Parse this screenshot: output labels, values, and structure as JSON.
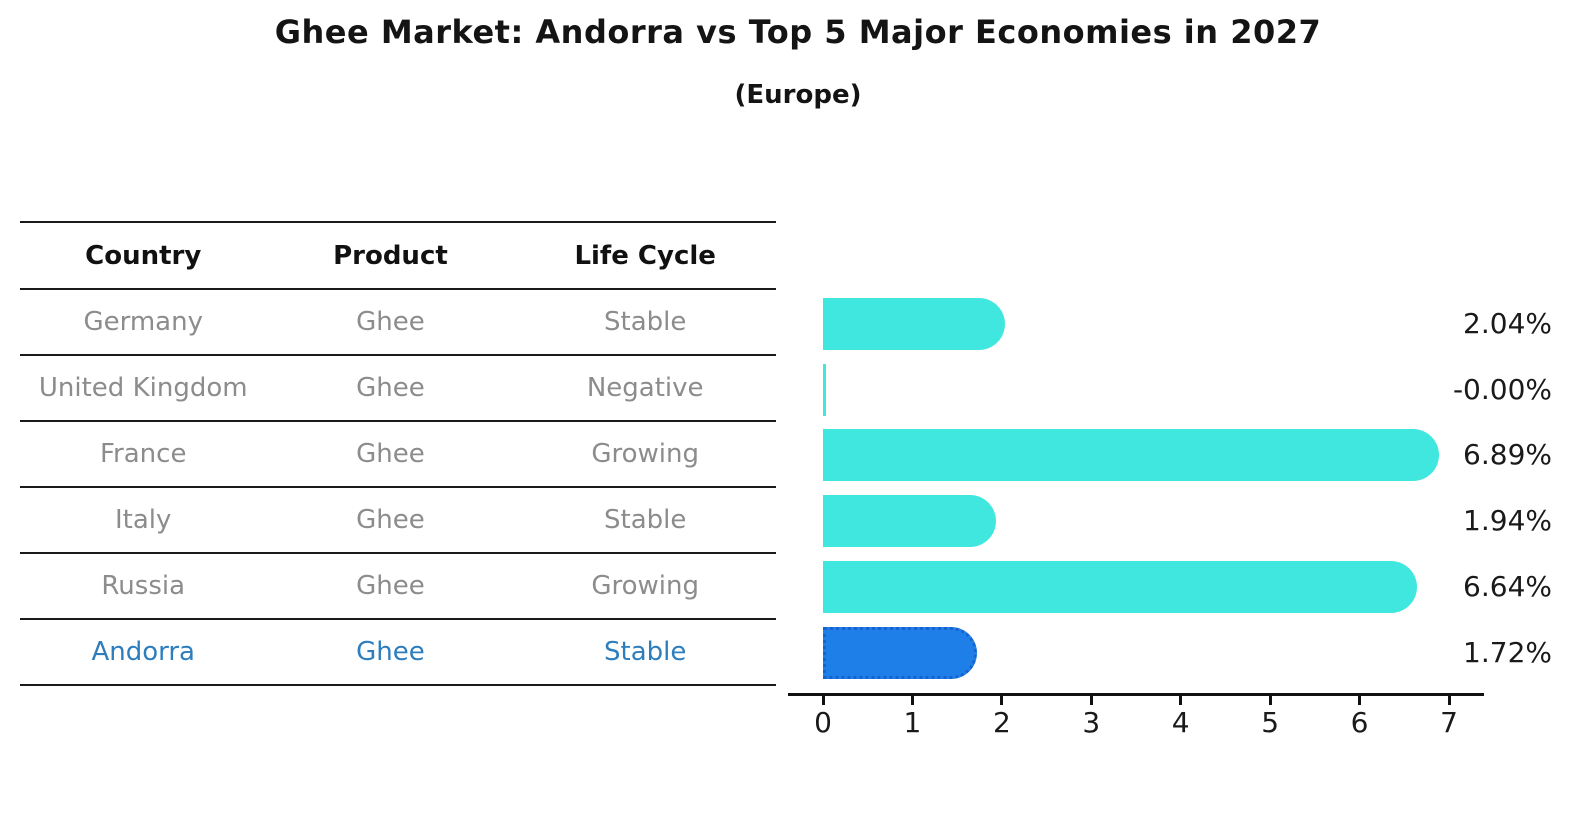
{
  "header": {
    "title": "Ghee Market: Andorra vs Top 5 Major Economies in 2027",
    "subtitle": "(Europe)"
  },
  "table": {
    "columns": [
      "Country",
      "Product",
      "Life Cycle"
    ],
    "rows": [
      {
        "country": "Germany",
        "product": "Ghee",
        "life_cycle": "Stable",
        "highlight": false
      },
      {
        "country": "United Kingdom",
        "product": "Ghee",
        "life_cycle": "Negative",
        "highlight": false
      },
      {
        "country": "France",
        "product": "Ghee",
        "life_cycle": "Growing",
        "highlight": false
      },
      {
        "country": "Italy",
        "product": "Ghee",
        "life_cycle": "Stable",
        "highlight": false
      },
      {
        "country": "Russia",
        "product": "Ghee",
        "life_cycle": "Growing",
        "highlight": false
      },
      {
        "country": "Andorra",
        "product": "Ghee",
        "life_cycle": "Stable",
        "highlight": true
      }
    ]
  },
  "chart_data": {
    "type": "bar",
    "orientation": "horizontal",
    "title": "Ghee Market: Andorra vs Top 5 Major Economies in 2027",
    "subtitle": "(Europe)",
    "categories": [
      "Germany",
      "United Kingdom",
      "France",
      "Italy",
      "Russia",
      "Andorra"
    ],
    "values": [
      2.04,
      -0.0,
      6.89,
      1.94,
      6.64,
      1.72
    ],
    "value_labels": [
      "2.04%",
      "-0.00%",
      "6.89%",
      "1.94%",
      "6.64%",
      "1.72%"
    ],
    "x_ticks": [
      0,
      1,
      2,
      3,
      4,
      5,
      6,
      7
    ],
    "xlim": [
      0,
      7
    ],
    "grid": false,
    "legend": false,
    "bar_color": "#40e7de",
    "highlight_bar_color": "#1f7fe8",
    "highlight_border_color": "#1563cf",
    "highlight_text_color": "#2e7ebd",
    "highlight_index": 5
  }
}
